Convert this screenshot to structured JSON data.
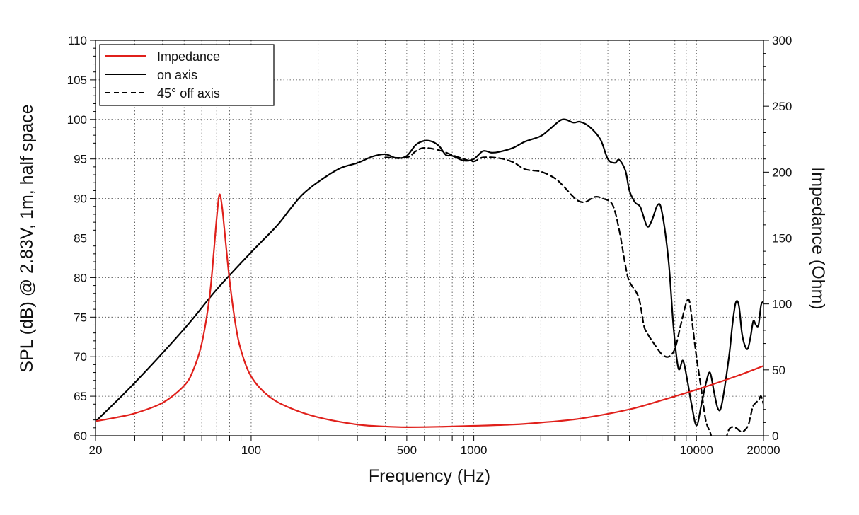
{
  "chart_data": {
    "type": "line",
    "title": "",
    "xlabel": "Frequency (Hz)",
    "ylabel": "SPL (dB) @ 2.83V, 1m, half space",
    "y2label": "Impedance (Ohm)",
    "xscale": "log",
    "xlim": [
      20,
      20000
    ],
    "ylim": [
      60,
      110
    ],
    "y2lim": [
      0,
      300
    ],
    "grid": true,
    "legend_position": "top-left",
    "x_ticks": [
      {
        "value": 20,
        "label": "20"
      },
      {
        "value": 100,
        "label": "100"
      },
      {
        "value": 500,
        "label": "500"
      },
      {
        "value": 1000,
        "label": "1000"
      },
      {
        "value": 10000,
        "label": "10000"
      },
      {
        "value": 20000,
        "label": "20000"
      }
    ],
    "y_ticks": [
      {
        "value": 60,
        "label": "60"
      },
      {
        "value": 65,
        "label": "65"
      },
      {
        "value": 70,
        "label": "70"
      },
      {
        "value": 75,
        "label": "75"
      },
      {
        "value": 80,
        "label": "80"
      },
      {
        "value": 85,
        "label": "85"
      },
      {
        "value": 90,
        "label": "90"
      },
      {
        "value": 95,
        "label": "95"
      },
      {
        "value": 100,
        "label": "100"
      },
      {
        "value": 105,
        "label": "105"
      },
      {
        "value": 110,
        "label": "110"
      }
    ],
    "y2_ticks": [
      {
        "value": 0,
        "label": "0"
      },
      {
        "value": 50,
        "label": "50"
      },
      {
        "value": 100,
        "label": "100"
      },
      {
        "value": 150,
        "label": "150"
      },
      {
        "value": 200,
        "label": "200"
      },
      {
        "value": 250,
        "label": "250"
      },
      {
        "value": 300,
        "label": "300"
      }
    ],
    "series": [
      {
        "name": "Impedance",
        "axis": "right",
        "color": "#e0201b",
        "dash": "solid",
        "points": [
          [
            20,
            11
          ],
          [
            25,
            14
          ],
          [
            30,
            17
          ],
          [
            40,
            25
          ],
          [
            50,
            38
          ],
          [
            55,
            50
          ],
          [
            60,
            70
          ],
          [
            65,
            105
          ],
          [
            68,
            140
          ],
          [
            70,
            165
          ],
          [
            72,
            183
          ],
          [
            74,
            174
          ],
          [
            76,
            155
          ],
          [
            80,
            118
          ],
          [
            85,
            85
          ],
          [
            90,
            65
          ],
          [
            100,
            45
          ],
          [
            120,
            30
          ],
          [
            150,
            21
          ],
          [
            200,
            14
          ],
          [
            300,
            8.5
          ],
          [
            400,
            7
          ],
          [
            500,
            6.5
          ],
          [
            700,
            6.8
          ],
          [
            1000,
            7.5
          ],
          [
            1500,
            8.5
          ],
          [
            2000,
            10
          ],
          [
            3000,
            13
          ],
          [
            5000,
            20
          ],
          [
            7000,
            27
          ],
          [
            10000,
            35
          ],
          [
            15000,
            45
          ],
          [
            20000,
            53
          ]
        ]
      },
      {
        "name": "on axis",
        "axis": "left",
        "color": "#000000",
        "dash": "solid",
        "points": [
          [
            20,
            61.8
          ],
          [
            30,
            66.7
          ],
          [
            50,
            73.5
          ],
          [
            70,
            78.5
          ],
          [
            100,
            83.2
          ],
          [
            130,
            86.5
          ],
          [
            150,
            88.7
          ],
          [
            170,
            90.5
          ],
          [
            200,
            92.1
          ],
          [
            250,
            93.8
          ],
          [
            300,
            94.5
          ],
          [
            350,
            95.3
          ],
          [
            400,
            95.6
          ],
          [
            450,
            95.1
          ],
          [
            500,
            95.4
          ],
          [
            550,
            96.8
          ],
          [
            600,
            97.3
          ],
          [
            650,
            97.2
          ],
          [
            700,
            96.6
          ],
          [
            750,
            95.5
          ],
          [
            800,
            95.4
          ],
          [
            900,
            94.8
          ],
          [
            1000,
            95.0
          ],
          [
            1100,
            96.0
          ],
          [
            1200,
            95.8
          ],
          [
            1300,
            95.9
          ],
          [
            1500,
            96.4
          ],
          [
            1700,
            97.2
          ],
          [
            2000,
            97.9
          ],
          [
            2200,
            98.8
          ],
          [
            2500,
            100.0
          ],
          [
            2800,
            99.6
          ],
          [
            3000,
            99.7
          ],
          [
            3300,
            99.1
          ],
          [
            3700,
            97.5
          ],
          [
            4000,
            95.0
          ],
          [
            4300,
            94.5
          ],
          [
            4500,
            94.9
          ],
          [
            4800,
            93.5
          ],
          [
            5000,
            91.0
          ],
          [
            5300,
            89.5
          ],
          [
            5600,
            88.9
          ],
          [
            6000,
            86.5
          ],
          [
            6300,
            87.2
          ],
          [
            6700,
            89.2
          ],
          [
            7000,
            88.3
          ],
          [
            7500,
            82.0
          ],
          [
            7900,
            73.5
          ],
          [
            8300,
            68.5
          ],
          [
            8700,
            69.5
          ],
          [
            9100,
            67.0
          ],
          [
            9500,
            64.0
          ],
          [
            10000,
            61.3
          ],
          [
            10500,
            63.8
          ],
          [
            11000,
            66.5
          ],
          [
            11500,
            68.0
          ],
          [
            12000,
            65.5
          ],
          [
            12500,
            63.4
          ],
          [
            13000,
            64.0
          ],
          [
            14000,
            70.0
          ],
          [
            14500,
            74.0
          ],
          [
            15000,
            76.8
          ],
          [
            15500,
            76.5
          ],
          [
            16000,
            73.0
          ],
          [
            16500,
            71.4
          ],
          [
            17000,
            71.0
          ],
          [
            17500,
            72.5
          ],
          [
            18000,
            74.5
          ],
          [
            18500,
            74.0
          ],
          [
            19000,
            74.0
          ],
          [
            19500,
            76.5
          ],
          [
            20000,
            77.0
          ]
        ]
      },
      {
        "name": "45° off axis",
        "axis": "left",
        "color": "#000000",
        "dash": "dashed",
        "points": [
          [
            400,
            95.2
          ],
          [
            500,
            95.2
          ],
          [
            550,
            96.0
          ],
          [
            600,
            96.4
          ],
          [
            700,
            96.1
          ],
          [
            800,
            95.5
          ],
          [
            900,
            95.0
          ],
          [
            1000,
            94.7
          ],
          [
            1100,
            95.2
          ],
          [
            1300,
            95.1
          ],
          [
            1500,
            94.6
          ],
          [
            1700,
            93.7
          ],
          [
            2000,
            93.4
          ],
          [
            2300,
            92.6
          ],
          [
            2500,
            91.7
          ],
          [
            2800,
            90.2
          ],
          [
            3000,
            89.6
          ],
          [
            3200,
            89.6
          ],
          [
            3500,
            90.2
          ],
          [
            3800,
            90.0
          ],
          [
            4200,
            89.2
          ],
          [
            4500,
            86.0
          ],
          [
            4800,
            81.5
          ],
          [
            5000,
            79.5
          ],
          [
            5500,
            77.5
          ],
          [
            5800,
            74.0
          ],
          [
            6000,
            73.0
          ],
          [
            6500,
            71.5
          ],
          [
            7000,
            70.3
          ],
          [
            7500,
            70.0
          ],
          [
            8000,
            71.0
          ],
          [
            8500,
            74.0
          ],
          [
            9000,
            76.8
          ],
          [
            9300,
            77.0
          ],
          [
            9600,
            74.0
          ],
          [
            10000,
            70.0
          ],
          [
            10500,
            66.0
          ],
          [
            11000,
            62.0
          ],
          [
            11500,
            60.5
          ],
          [
            12000,
            59.0
          ],
          [
            13000,
            58.0
          ],
          [
            14000,
            60.8
          ],
          [
            15000,
            61.0
          ],
          [
            16000,
            60.5
          ],
          [
            17000,
            61.2
          ],
          [
            17500,
            62.5
          ],
          [
            18000,
            63.8
          ],
          [
            19000,
            64.5
          ],
          [
            19500,
            65.0
          ],
          [
            20000,
            64.0
          ]
        ]
      }
    ]
  }
}
